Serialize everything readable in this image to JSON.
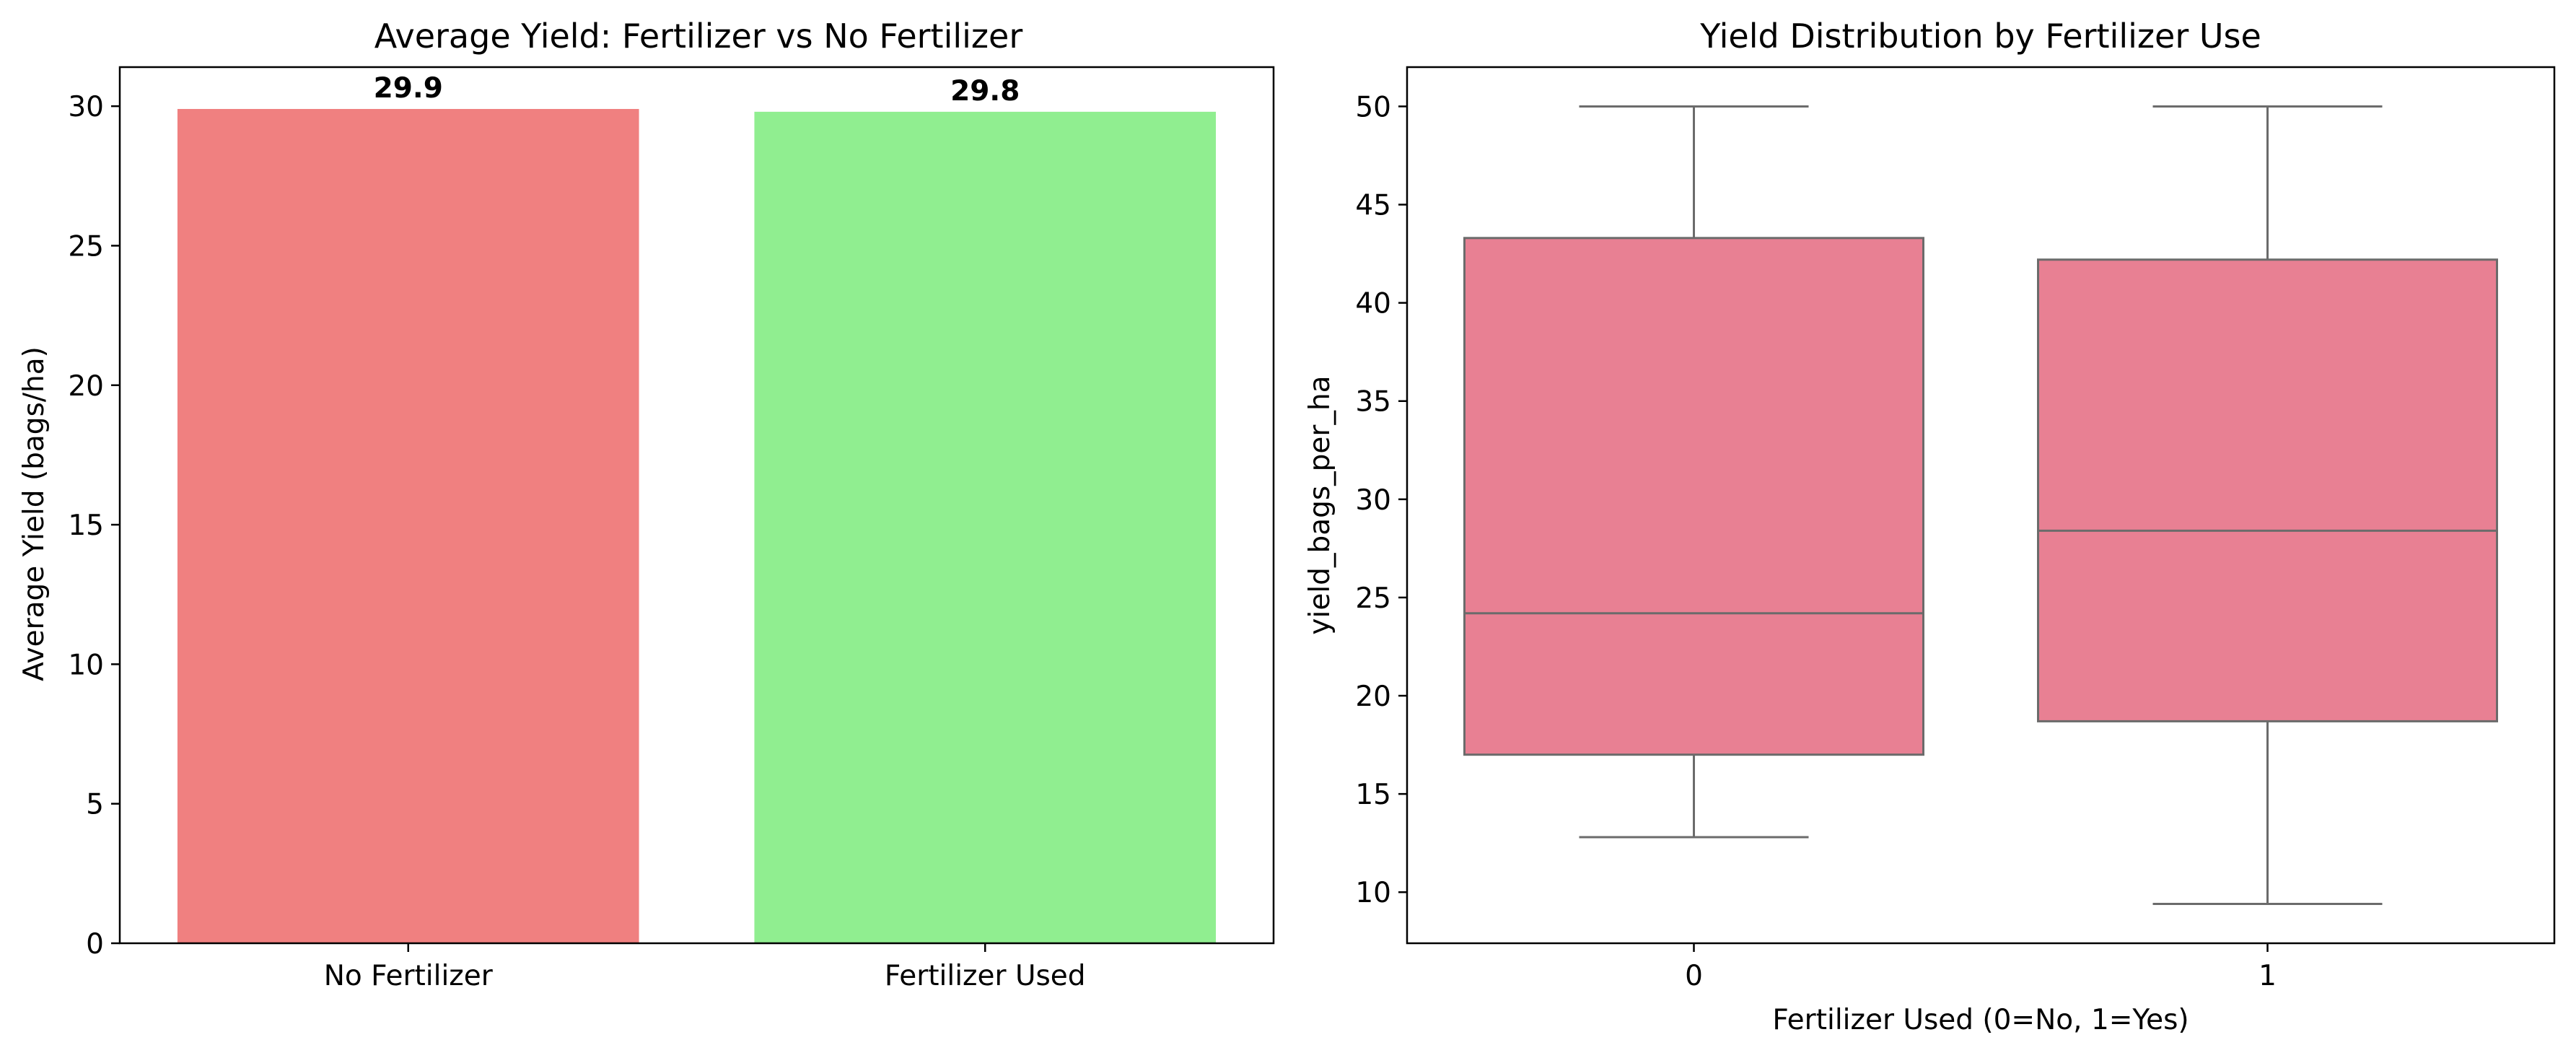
{
  "chart_data": [
    {
      "type": "bar",
      "title": "Average Yield: Fertilizer vs No Fertilizer",
      "xlabel": "",
      "ylabel": "Average Yield (bags/ha)",
      "categories": [
        "No Fertilizer",
        "Fertilizer Used"
      ],
      "values": [
        29.9,
        29.8
      ],
      "data_labels": [
        "29.9",
        "29.8"
      ],
      "colors": [
        "#f08080",
        "#90ee90"
      ],
      "ylim": [
        0,
        31.4
      ],
      "yticks": [
        0,
        5,
        10,
        15,
        20,
        25,
        30
      ],
      "grid": false,
      "legend": "none"
    },
    {
      "type": "box",
      "title": "Yield Distribution by Fertilizer Use",
      "xlabel": "Fertilizer Used (0=No, 1=Yes)",
      "ylabel": "yield_bags_per_ha",
      "categories": [
        "0",
        "1"
      ],
      "boxes": [
        {
          "category": "0",
          "whisker_low": 12.8,
          "q1": 17.0,
          "median": 24.2,
          "q3": 43.3,
          "whisker_high": 50.0
        },
        {
          "category": "1",
          "whisker_low": 9.4,
          "q1": 18.7,
          "median": 28.4,
          "q3": 42.2,
          "whisker_high": 50.0
        }
      ],
      "box_color": "#e88093",
      "line_color": "#6b6b6b",
      "ylim": [
        7.4,
        52.0
      ],
      "yticks": [
        10,
        15,
        20,
        25,
        30,
        35,
        40,
        45,
        50
      ],
      "grid": false,
      "legend": "none"
    }
  ]
}
